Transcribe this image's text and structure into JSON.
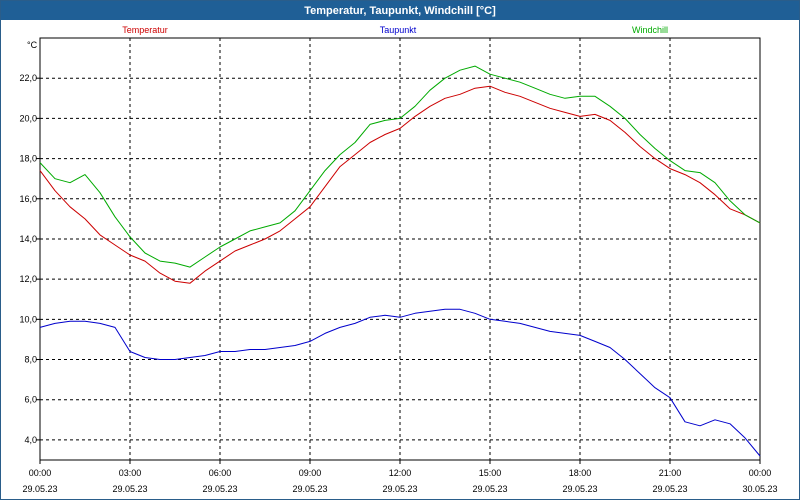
{
  "window": {
    "title": "Temperatur, Taupunkt, Windchill [°C]"
  },
  "chart_data": {
    "type": "line",
    "title": "Temperatur, Taupunkt, Windchill [°C]",
    "ylabel": "°C",
    "ylim": [
      3.0,
      24.0
    ],
    "xlim": [
      0,
      24
    ],
    "grid": true,
    "yticks": [
      {
        "value": 4.0,
        "label": "4,0"
      },
      {
        "value": 6.0,
        "label": "6,0"
      },
      {
        "value": 8.0,
        "label": "8,0"
      },
      {
        "value": 10.0,
        "label": "10,0"
      },
      {
        "value": 12.0,
        "label": "12,0"
      },
      {
        "value": 14.0,
        "label": "14,0"
      },
      {
        "value": 16.0,
        "label": "16,0"
      },
      {
        "value": 18.0,
        "label": "18,0"
      },
      {
        "value": 20.0,
        "label": "20,0"
      },
      {
        "value": 22.0,
        "label": "22,0"
      }
    ],
    "xticks": [
      {
        "value": 0,
        "time": "00:00",
        "date": "29.05.23"
      },
      {
        "value": 3,
        "time": "03:00",
        "date": "29.05.23"
      },
      {
        "value": 6,
        "time": "06:00",
        "date": "29.05.23"
      },
      {
        "value": 9,
        "time": "09:00",
        "date": "29.05.23"
      },
      {
        "value": 12,
        "time": "12:00",
        "date": "29.05.23"
      },
      {
        "value": 15,
        "time": "15:00",
        "date": "29.05.23"
      },
      {
        "value": 18,
        "time": "18:00",
        "date": "29.05.23"
      },
      {
        "value": 21,
        "time": "21:00",
        "date": "29.05.23"
      },
      {
        "value": 24,
        "time": "00:00",
        "date": "30.05.23"
      }
    ],
    "series": [
      {
        "name": "Temperatur",
        "color": "#cc0000",
        "x": [
          0,
          0.5,
          1,
          1.5,
          2,
          2.5,
          3,
          3.5,
          4,
          4.5,
          5,
          5.5,
          6,
          6.5,
          7,
          7.5,
          8,
          8.5,
          9,
          9.5,
          10,
          10.5,
          11,
          11.5,
          12,
          12.5,
          13,
          13.5,
          14,
          14.5,
          15,
          15.5,
          16,
          16.5,
          17,
          17.5,
          18,
          18.5,
          19,
          19.5,
          20,
          20.5,
          21,
          21.5,
          22,
          22.5,
          23,
          23.5,
          24
        ],
        "y": [
          17.4,
          16.4,
          15.6,
          15.0,
          14.2,
          13.7,
          13.2,
          12.9,
          12.3,
          11.9,
          11.8,
          12.4,
          12.9,
          13.4,
          13.7,
          14.0,
          14.4,
          15.0,
          15.6,
          16.6,
          17.6,
          18.2,
          18.8,
          19.2,
          19.5,
          20.1,
          20.6,
          21.0,
          21.2,
          21.5,
          21.6,
          21.3,
          21.1,
          20.8,
          20.5,
          20.3,
          20.1,
          20.2,
          19.9,
          19.3,
          18.6,
          18.0,
          17.5,
          17.2,
          16.8,
          16.2,
          15.5,
          15.2,
          14.8
        ]
      },
      {
        "name": "Taupunkt",
        "color": "#0000cc",
        "x": [
          0,
          0.5,
          1,
          1.5,
          2,
          2.5,
          3,
          3.5,
          4,
          4.5,
          5,
          5.5,
          6,
          6.5,
          7,
          7.5,
          8,
          8.5,
          9,
          9.5,
          10,
          10.5,
          11,
          11.5,
          12,
          12.5,
          13,
          13.5,
          14,
          14.5,
          15,
          15.5,
          16,
          16.5,
          17,
          17.5,
          18,
          18.5,
          19,
          19.5,
          20,
          20.5,
          21,
          21.5,
          22,
          22.5,
          23,
          23.5,
          24
        ],
        "y": [
          9.6,
          9.8,
          9.9,
          9.9,
          9.8,
          9.6,
          8.4,
          8.1,
          8.0,
          8.0,
          8.1,
          8.2,
          8.4,
          8.4,
          8.5,
          8.5,
          8.6,
          8.7,
          8.9,
          9.3,
          9.6,
          9.8,
          10.1,
          10.2,
          10.1,
          10.3,
          10.4,
          10.5,
          10.5,
          10.3,
          10.0,
          9.9,
          9.8,
          9.6,
          9.4,
          9.3,
          9.2,
          8.9,
          8.6,
          8.0,
          7.3,
          6.6,
          6.1,
          4.9,
          4.7,
          5.0,
          4.8,
          4.1,
          3.2
        ]
      },
      {
        "name": "Windchill",
        "color": "#00aa00",
        "x": [
          0,
          0.5,
          1,
          1.5,
          2,
          2.5,
          3,
          3.5,
          4,
          4.5,
          5,
          5.5,
          6,
          6.5,
          7,
          7.5,
          8,
          8.5,
          9,
          9.5,
          10,
          10.5,
          11,
          11.5,
          12,
          12.5,
          13,
          13.5,
          14,
          14.5,
          15,
          15.5,
          16,
          16.5,
          17,
          17.5,
          18,
          18.5,
          19,
          19.5,
          20,
          20.5,
          21,
          21.5,
          22,
          22.5,
          23,
          23.5,
          24
        ],
        "y": [
          17.8,
          17.0,
          16.8,
          17.2,
          16.3,
          15.1,
          14.1,
          13.3,
          12.9,
          12.8,
          12.6,
          13.1,
          13.6,
          14.0,
          14.4,
          14.6,
          14.8,
          15.4,
          16.4,
          17.4,
          18.2,
          18.8,
          19.7,
          19.9,
          20.0,
          20.6,
          21.4,
          22.0,
          22.4,
          22.6,
          22.2,
          22.0,
          21.8,
          21.5,
          21.2,
          21.0,
          21.1,
          21.1,
          20.6,
          20.0,
          19.2,
          18.5,
          17.9,
          17.4,
          17.3,
          16.8,
          15.9,
          15.2,
          14.8
        ]
      }
    ]
  }
}
